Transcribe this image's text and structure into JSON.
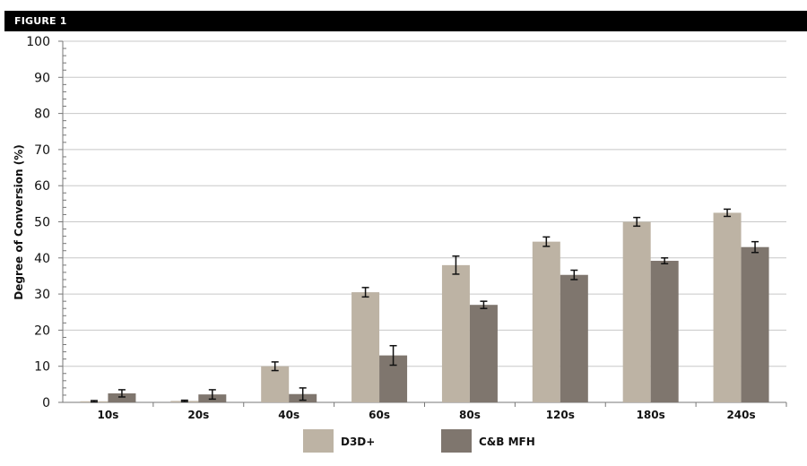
{
  "header": {
    "title": "FIGURE 1"
  },
  "chart_data": {
    "type": "bar",
    "title": "",
    "xlabel": "",
    "ylabel": "Degree of Conversion (%)",
    "ylim": [
      0,
      100
    ],
    "yticks": [
      0,
      10,
      20,
      30,
      40,
      50,
      60,
      70,
      80,
      90,
      100
    ],
    "grid": true,
    "legend_position": "bottom",
    "categories": [
      "10s",
      "20s",
      "40s",
      "60s",
      "80s",
      "120s",
      "180s",
      "240s"
    ],
    "series": [
      {
        "name": "D3D+",
        "color": "#bdb3a4",
        "values": [
          0.3,
          0.4,
          10,
          30.5,
          38,
          44.5,
          50,
          52.5
        ],
        "errors": [
          0.2,
          0.2,
          1.2,
          1.3,
          2.5,
          1.3,
          1.2,
          1.0
        ]
      },
      {
        "name": "C&B MFH",
        "color": "#7f766e",
        "values": [
          2.5,
          2.2,
          2.3,
          13,
          27,
          35.3,
          39.2,
          43
        ],
        "errors": [
          1.0,
          1.3,
          1.7,
          2.7,
          1.0,
          1.3,
          0.8,
          1.5
        ]
      }
    ]
  }
}
